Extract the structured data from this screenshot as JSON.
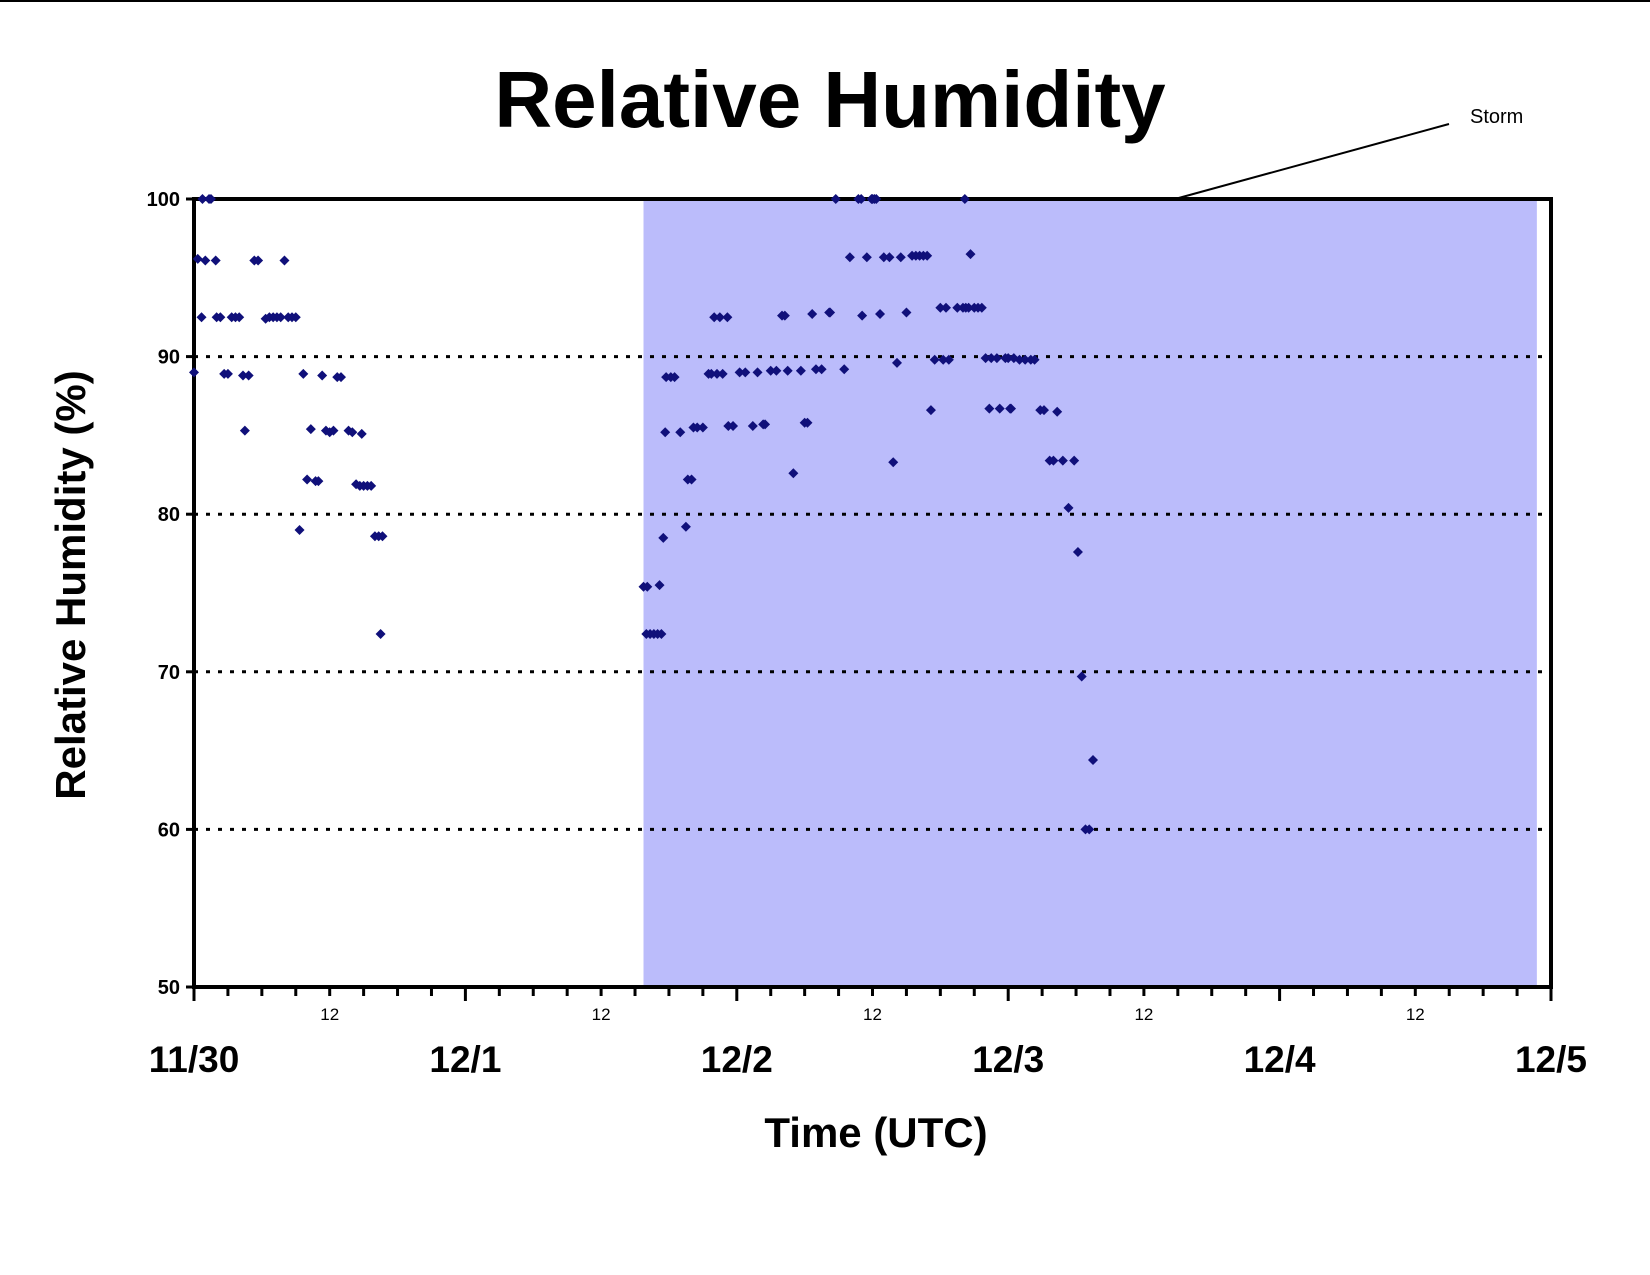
{
  "chart_data": {
    "type": "scatter",
    "title": "Relative Humidity",
    "xlabel": "Time (UTC)",
    "ylabel": "Relative Humidity (%)",
    "ylim": [
      50,
      100
    ],
    "yticks": [
      50,
      60,
      70,
      80,
      90,
      100
    ],
    "xlim": [
      "2000-11-30T00:00",
      "2000-12-05T00:00"
    ],
    "x_major_ticks": [
      "11/30",
      "12/1",
      "12/2",
      "12/3",
      "12/4",
      "12/5"
    ],
    "x_minor_label": "12",
    "grid": "horizontal dotted at 60, 70, 80, 90",
    "marker_color": "#10107a",
    "shade_color": "#bbbcfb",
    "annotation": {
      "text": "Storm",
      "shaded_span": [
        "2000-12-01T15:45",
        "2000-12-04T22:45"
      ]
    },
    "series": [
      {
        "points": [
          [
            "2000-11-30T00:00",
            89.0
          ],
          [
            "2000-11-30T00:20",
            96.2
          ],
          [
            "2000-11-30T00:40",
            92.5
          ],
          [
            "2000-11-30T00:45",
            100.0
          ],
          [
            "2000-11-30T01:00",
            96.1
          ],
          [
            "2000-11-30T01:20",
            100.0
          ],
          [
            "2000-11-30T01:30",
            100.0
          ],
          [
            "2000-11-30T01:55",
            96.1
          ],
          [
            "2000-11-30T02:00",
            92.5
          ],
          [
            "2000-11-30T02:20",
            92.5
          ],
          [
            "2000-11-30T02:40",
            88.9
          ],
          [
            "2000-11-30T03:00",
            88.9
          ],
          [
            "2000-11-30T03:20",
            92.5
          ],
          [
            "2000-11-30T03:40",
            92.5
          ],
          [
            "2000-11-30T04:00",
            92.5
          ],
          [
            "2000-11-30T04:20",
            88.8
          ],
          [
            "2000-11-30T04:30",
            85.3
          ],
          [
            "2000-11-30T04:50",
            88.8
          ],
          [
            "2000-11-30T05:20",
            96.1
          ],
          [
            "2000-11-30T05:40",
            96.1
          ],
          [
            "2000-11-30T06:20",
            92.4
          ],
          [
            "2000-11-30T06:40",
            92.5
          ],
          [
            "2000-11-30T07:00",
            92.5
          ],
          [
            "2000-11-30T07:20",
            92.5
          ],
          [
            "2000-11-30T07:40",
            92.5
          ],
          [
            "2000-11-30T08:00",
            96.1
          ],
          [
            "2000-11-30T08:20",
            92.5
          ],
          [
            "2000-11-30T08:40",
            92.5
          ],
          [
            "2000-11-30T09:00",
            92.5
          ],
          [
            "2000-11-30T09:20",
            79.0
          ],
          [
            "2000-11-30T09:40",
            88.9
          ],
          [
            "2000-11-30T10:00",
            82.2
          ],
          [
            "2000-11-30T10:20",
            85.4
          ],
          [
            "2000-11-30T10:45",
            82.1
          ],
          [
            "2000-11-30T11:00",
            82.1
          ],
          [
            "2000-11-30T11:20",
            88.8
          ],
          [
            "2000-11-30T11:40",
            85.3
          ],
          [
            "2000-11-30T12:00",
            85.2
          ],
          [
            "2000-11-30T12:20",
            85.3
          ],
          [
            "2000-11-30T12:40",
            88.7
          ],
          [
            "2000-11-30T13:00",
            88.7
          ],
          [
            "2000-11-30T13:40",
            85.3
          ],
          [
            "2000-11-30T14:00",
            85.2
          ],
          [
            "2000-11-30T14:20",
            81.9
          ],
          [
            "2000-11-30T14:40",
            81.8
          ],
          [
            "2000-11-30T14:50",
            85.1
          ],
          [
            "2000-11-30T15:00",
            81.8
          ],
          [
            "2000-11-30T15:20",
            81.8
          ],
          [
            "2000-11-30T15:40",
            81.8
          ],
          [
            "2000-11-30T16:00",
            78.6
          ],
          [
            "2000-11-30T16:20",
            78.6
          ],
          [
            "2000-11-30T16:40",
            78.6
          ],
          [
            "2000-11-30T16:30",
            72.4
          ],
          [
            "2000-12-01T15:45",
            75.4
          ],
          [
            "2000-12-01T16:00",
            72.4
          ],
          [
            "2000-12-01T16:05",
            75.4
          ],
          [
            "2000-12-01T16:20",
            72.4
          ],
          [
            "2000-12-01T16:40",
            72.4
          ],
          [
            "2000-12-01T17:00",
            72.4
          ],
          [
            "2000-12-01T17:10",
            75.5
          ],
          [
            "2000-12-01T17:20",
            72.4
          ],
          [
            "2000-12-01T17:30",
            78.5
          ],
          [
            "2000-12-01T17:40",
            85.2
          ],
          [
            "2000-12-01T17:45",
            88.7
          ],
          [
            "2000-12-01T18:10",
            88.7
          ],
          [
            "2000-12-01T18:30",
            88.7
          ],
          [
            "2000-12-01T19:00",
            85.2
          ],
          [
            "2000-12-01T19:30",
            79.2
          ],
          [
            "2000-12-01T19:40",
            82.2
          ],
          [
            "2000-12-01T20:00",
            82.2
          ],
          [
            "2000-12-01T20:10",
            85.5
          ],
          [
            "2000-12-01T20:30",
            85.5
          ],
          [
            "2000-12-01T21:00",
            85.5
          ],
          [
            "2000-12-01T21:30",
            88.9
          ],
          [
            "2000-12-01T21:45",
            88.9
          ],
          [
            "2000-12-01T22:00",
            92.5
          ],
          [
            "2000-12-01T22:15",
            88.9
          ],
          [
            "2000-12-01T22:30",
            92.5
          ],
          [
            "2000-12-01T22:45",
            88.9
          ],
          [
            "2000-12-01T23:10",
            92.5
          ],
          [
            "2000-12-01T23:15",
            85.6
          ],
          [
            "2000-12-01T23:40",
            85.6
          ],
          [
            "2000-12-02T00:15",
            89.0
          ],
          [
            "2000-12-02T00:45",
            89.0
          ],
          [
            "2000-12-02T01:25",
            85.6
          ],
          [
            "2000-12-02T01:50",
            89.0
          ],
          [
            "2000-12-02T02:20",
            85.7
          ],
          [
            "2000-12-02T02:30",
            85.7
          ],
          [
            "2000-12-02T03:00",
            89.1
          ],
          [
            "2000-12-02T03:30",
            89.1
          ],
          [
            "2000-12-02T04:00",
            92.6
          ],
          [
            "2000-12-02T04:15",
            92.6
          ],
          [
            "2000-12-02T04:30",
            89.1
          ],
          [
            "2000-12-02T05:00",
            82.6
          ],
          [
            "2000-12-02T05:40",
            89.1
          ],
          [
            "2000-12-02T06:00",
            85.8
          ],
          [
            "2000-12-02T06:15",
            85.8
          ],
          [
            "2000-12-02T06:40",
            92.7
          ],
          [
            "2000-12-02T07:00",
            89.2
          ],
          [
            "2000-12-02T07:30",
            89.2
          ],
          [
            "2000-12-02T08:10",
            92.8
          ],
          [
            "2000-12-02T08:15",
            92.8
          ],
          [
            "2000-12-02T08:45",
            100.0
          ],
          [
            "2000-12-02T09:30",
            89.2
          ],
          [
            "2000-12-02T10:00",
            96.3
          ],
          [
            "2000-12-02T10:45",
            100.0
          ],
          [
            "2000-12-02T11:00",
            100.0
          ],
          [
            "2000-12-02T11:05",
            92.6
          ],
          [
            "2000-12-02T11:30",
            96.3
          ],
          [
            "2000-12-02T11:55",
            100.0
          ],
          [
            "2000-12-02T12:00",
            100.0
          ],
          [
            "2000-12-02T12:10",
            100.0
          ],
          [
            "2000-12-02T12:20",
            100.0
          ],
          [
            "2000-12-02T12:40",
            92.7
          ],
          [
            "2000-12-02T13:00",
            96.3
          ],
          [
            "2000-12-02T13:30",
            96.3
          ],
          [
            "2000-12-02T13:50",
            83.3
          ],
          [
            "2000-12-02T14:10",
            89.6
          ],
          [
            "2000-12-02T14:30",
            96.3
          ],
          [
            "2000-12-02T15:00",
            92.8
          ],
          [
            "2000-12-02T15:30",
            96.4
          ],
          [
            "2000-12-02T15:50",
            96.4
          ],
          [
            "2000-12-02T16:10",
            96.4
          ],
          [
            "2000-12-02T16:30",
            96.4
          ],
          [
            "2000-12-02T16:50",
            96.4
          ],
          [
            "2000-12-02T17:10",
            86.6
          ],
          [
            "2000-12-02T17:30",
            89.8
          ],
          [
            "2000-12-02T18:00",
            93.1
          ],
          [
            "2000-12-02T18:15",
            89.8
          ],
          [
            "2000-12-02T18:30",
            93.1
          ],
          [
            "2000-12-02T18:45",
            89.8
          ],
          [
            "2000-12-02T19:30",
            93.1
          ],
          [
            "2000-12-02T20:00",
            93.1
          ],
          [
            "2000-12-02T20:10",
            100.0
          ],
          [
            "2000-12-02T20:15",
            93.1
          ],
          [
            "2000-12-02T20:30",
            93.1
          ],
          [
            "2000-12-02T20:40",
            96.5
          ],
          [
            "2000-12-02T21:00",
            93.1
          ],
          [
            "2000-12-02T21:20",
            93.1
          ],
          [
            "2000-12-02T21:40",
            93.1
          ],
          [
            "2000-12-02T22:00",
            89.9
          ],
          [
            "2000-12-02T22:20",
            86.7
          ],
          [
            "2000-12-02T22:30",
            89.9
          ],
          [
            "2000-12-02T23:00",
            89.9
          ],
          [
            "2000-12-02T23:15",
            86.7
          ],
          [
            "2000-12-02T23:45",
            89.9
          ],
          [
            "2000-12-03T00:00",
            89.9
          ],
          [
            "2000-12-03T00:10",
            86.7
          ],
          [
            "2000-12-03T00:15",
            86.7
          ],
          [
            "2000-12-03T00:30",
            89.9
          ],
          [
            "2000-12-03T01:00",
            89.8
          ],
          [
            "2000-12-03T01:30",
            89.8
          ],
          [
            "2000-12-03T02:00",
            89.8
          ],
          [
            "2000-12-03T02:20",
            89.8
          ],
          [
            "2000-12-03T02:50",
            86.6
          ],
          [
            "2000-12-03T03:10",
            86.6
          ],
          [
            "2000-12-03T03:40",
            83.4
          ],
          [
            "2000-12-03T04:00",
            83.4
          ],
          [
            "2000-12-03T04:20",
            86.5
          ],
          [
            "2000-12-03T04:50",
            83.4
          ],
          [
            "2000-12-03T05:20",
            80.4
          ],
          [
            "2000-12-03T05:50",
            83.4
          ],
          [
            "2000-12-03T06:10",
            77.6
          ],
          [
            "2000-12-03T06:30",
            69.7
          ],
          [
            "2000-12-03T06:50",
            60.0
          ],
          [
            "2000-12-03T07:10",
            60.0
          ],
          [
            "2000-12-03T07:30",
            64.4
          ]
        ]
      }
    ]
  }
}
